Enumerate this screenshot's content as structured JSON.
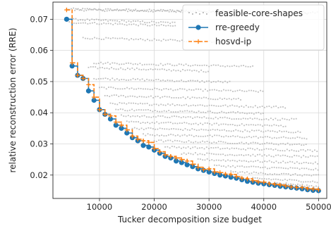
{
  "chart_data": {
    "type": "line",
    "xlabel": "Tucker decomposition size budget",
    "ylabel": "relative reconstruction error (RRE)",
    "xlim": [
      1500,
      51500
    ],
    "ylim": [
      0.0125,
      0.0755
    ],
    "xticks": [
      10000,
      20000,
      30000,
      40000,
      50000
    ],
    "yticks": [
      0.02,
      0.03,
      0.04,
      0.05,
      0.06,
      0.07
    ],
    "xtick_labels": [
      "10000",
      "20000",
      "30000",
      "40000",
      "50000"
    ],
    "ytick_labels": [
      "0.02",
      "0.03",
      "0.04",
      "0.05",
      "0.06",
      "0.07"
    ],
    "grid": true,
    "legend_position": "top-right",
    "legend": [
      {
        "name": "feasible-core-shapes",
        "color": "#b3b3b3"
      },
      {
        "name": "rre-greedy",
        "color": "#1f77b4"
      },
      {
        "name": "hosvd-ip",
        "color": "#ff7f0e"
      }
    ],
    "series": [
      {
        "name": "rre-greedy",
        "color": "#1f77b4",
        "style": "solid-circle",
        "x": [
          4000,
          5000,
          6000,
          7000,
          8000,
          9000,
          10000,
          11000,
          12000,
          13000,
          14000,
          15000,
          16000,
          17000,
          18000,
          19000,
          20000,
          21000,
          22000,
          23000,
          24000,
          25000,
          26000,
          27000,
          28000,
          29000,
          30000,
          31000,
          32000,
          33000,
          34000,
          35000,
          36000,
          37000,
          38000,
          39000,
          40000,
          41000,
          42000,
          43000,
          44000,
          45000,
          46000,
          47000,
          48000,
          49000,
          50000
        ],
        "y": [
          0.07,
          0.055,
          0.052,
          0.051,
          0.047,
          0.044,
          0.041,
          0.0395,
          0.038,
          0.036,
          0.035,
          0.0335,
          0.032,
          0.031,
          0.0295,
          0.029,
          0.028,
          0.027,
          0.026,
          0.0255,
          0.0245,
          0.024,
          0.0233,
          0.0227,
          0.022,
          0.0215,
          0.021,
          0.0205,
          0.02,
          0.0197,
          0.0193,
          0.019,
          0.0185,
          0.018,
          0.0177,
          0.0174,
          0.0172,
          0.0169,
          0.0167,
          0.0164,
          0.0162,
          0.016,
          0.0158,
          0.0156,
          0.0153,
          0.0151,
          0.015
        ]
      },
      {
        "name": "hosvd-ip",
        "color": "#ff7f0e",
        "style": "dashed-plus",
        "x": [
          4000,
          5000,
          6000,
          7000,
          8000,
          9000,
          10000,
          11000,
          12000,
          13000,
          14000,
          15000,
          16000,
          17000,
          18000,
          19000,
          20000,
          21000,
          22000,
          23000,
          24000,
          25000,
          26000,
          27000,
          28000,
          29000,
          30000,
          31000,
          32000,
          33000,
          34000,
          35000,
          36000,
          37000,
          38000,
          39000,
          40000,
          41000,
          42000,
          43000,
          44000,
          45000,
          46000,
          47000,
          48000,
          49000,
          50000
        ],
        "y": [
          0.073,
          0.056,
          0.052,
          0.051,
          0.049,
          0.045,
          0.041,
          0.0395,
          0.039,
          0.037,
          0.036,
          0.0345,
          0.0325,
          0.0315,
          0.031,
          0.0305,
          0.0285,
          0.0275,
          0.0265,
          0.026,
          0.0255,
          0.025,
          0.0245,
          0.0235,
          0.0225,
          0.0218,
          0.022,
          0.021,
          0.0208,
          0.0203,
          0.0202,
          0.0195,
          0.019,
          0.0188,
          0.0182,
          0.0178,
          0.0177,
          0.0172,
          0.017,
          0.0168,
          0.0165,
          0.0162,
          0.016,
          0.016,
          0.0156,
          0.0155,
          0.0153
        ]
      },
      {
        "name": "feasible-core-shapes",
        "color": "#b3b3b3",
        "style": "scatter",
        "groups": [
          {
            "y": 0.0733,
            "x_start": 4000,
            "x_end": 50000
          },
          {
            "y": 0.073,
            "x_start": 5500,
            "x_end": 48000
          },
          {
            "y": 0.07,
            "x_start": 4000,
            "x_end": 24000
          },
          {
            "y": 0.069,
            "x_start": 4500,
            "x_end": 24000
          },
          {
            "y": 0.064,
            "x_start": 7000,
            "x_end": 32000
          },
          {
            "y": 0.056,
            "x_start": 9000,
            "x_end": 38000
          },
          {
            "y": 0.0545,
            "x_start": 8000,
            "x_end": 30000
          },
          {
            "y": 0.051,
            "x_start": 9000,
            "x_end": 34000
          },
          {
            "y": 0.048,
            "x_start": 10000,
            "x_end": 40000
          },
          {
            "y": 0.0455,
            "x_start": 11000,
            "x_end": 36000
          },
          {
            "y": 0.043,
            "x_start": 12000,
            "x_end": 44000
          },
          {
            "y": 0.041,
            "x_start": 13000,
            "x_end": 40000
          },
          {
            "y": 0.039,
            "x_start": 14000,
            "x_end": 46000
          },
          {
            "y": 0.037,
            "x_start": 15000,
            "x_end": 44000
          },
          {
            "y": 0.035,
            "x_start": 16000,
            "x_end": 47000
          },
          {
            "y": 0.033,
            "x_start": 18000,
            "x_end": 48000
          },
          {
            "y": 0.031,
            "x_start": 20000,
            "x_end": 48000
          },
          {
            "y": 0.029,
            "x_start": 22000,
            "x_end": 50000
          },
          {
            "y": 0.027,
            "x_start": 25000,
            "x_end": 50000
          },
          {
            "y": 0.025,
            "x_start": 28000,
            "x_end": 50000
          },
          {
            "y": 0.023,
            "x_start": 31000,
            "x_end": 50000
          },
          {
            "y": 0.021,
            "x_start": 34000,
            "x_end": 50000
          },
          {
            "y": 0.019,
            "x_start": 38000,
            "x_end": 50000
          },
          {
            "y": 0.0175,
            "x_start": 42000,
            "x_end": 50000
          },
          {
            "y": 0.016,
            "x_start": 46000,
            "x_end": 50000
          }
        ]
      }
    ]
  }
}
